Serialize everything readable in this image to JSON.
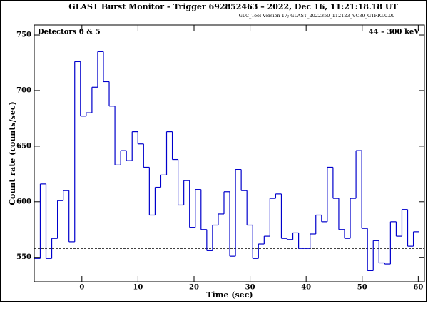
{
  "chart_data": {
    "type": "histogram",
    "title": "GLAST Burst Monitor  –  Trigger 692852463  –  2022, Dec 16, 11:21:18.18 UT",
    "subtitle": "GLC_Tool Version 17; GLAST_2022350_112123_VC39_GTRIG.0.00",
    "annotations": [
      "Detectors 0 & 5",
      "44 – 300 keV"
    ],
    "xlabel": "Time (sec)",
    "ylabel": "Count rate (counts/sec)",
    "color": "#0000cc",
    "bins": [
      -8.448,
      -7.424,
      -6.4,
      -5.376,
      -4.352,
      -3.328,
      -2.304,
      -1.28,
      -0.256,
      0.768,
      1.792,
      2.816,
      3.84,
      4.864,
      5.888,
      6.912,
      7.936,
      8.96,
      9.984,
      11.008,
      12.032,
      13.056,
      14.08,
      15.104,
      16.128,
      17.152,
      18.176,
      19.2,
      20.224,
      21.248,
      22.272,
      23.296,
      24.32,
      25.344,
      26.368,
      27.392,
      28.416,
      29.44,
      30.464,
      31.488,
      32.512,
      33.536,
      34.56,
      35.584,
      36.608,
      37.632,
      38.656,
      39.68,
      40.704,
      41.728,
      42.752,
      43.776,
      44.8,
      45.824,
      46.848,
      47.872,
      48.896,
      49.92,
      50.944,
      51.968,
      52.992,
      54.016,
      55.04,
      56.064,
      57.088,
      58.112,
      59.136,
      60.16
    ],
    "values": [
      549,
      616,
      549,
      567,
      601,
      610,
      564,
      726,
      677,
      680,
      703,
      735,
      708,
      686,
      633,
      646,
      637,
      663,
      652,
      631,
      588,
      613,
      624,
      663,
      638,
      597,
      619,
      577,
      611,
      575,
      556,
      579,
      589,
      609,
      551,
      629,
      610,
      579,
      549,
      562,
      569,
      603,
      607,
      567,
      566,
      572,
      558,
      558,
      571,
      588,
      582,
      631,
      603,
      575,
      567,
      603,
      646,
      576,
      538,
      565,
      545,
      544,
      582,
      569,
      593,
      560,
      573
    ],
    "background_level": 558,
    "xlim": [
      -8.5,
      61.1
    ],
    "ylim": [
      528,
      759
    ],
    "xticks": [
      0,
      10,
      20,
      30,
      40,
      50,
      60
    ],
    "yticks": [
      550,
      600,
      650,
      700,
      750
    ]
  }
}
